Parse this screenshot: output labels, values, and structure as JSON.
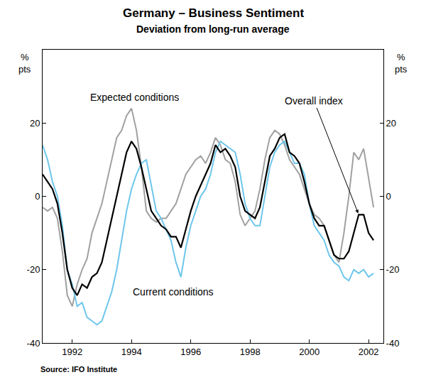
{
  "chart_data": {
    "type": "line",
    "title": "Germany – Business Sentiment",
    "subtitle": "Deviation from long-run average",
    "y_label": "% pts",
    "source": "Source: IFO Institute",
    "grid": false,
    "x": [
      1991.5,
      1991.667,
      1991.833,
      1992,
      1992.167,
      1992.333,
      1992.5,
      1992.667,
      1992.833,
      1993,
      1993.167,
      1993.333,
      1993.5,
      1993.667,
      1993.833,
      1994,
      1994.167,
      1994.333,
      1994.5,
      1994.667,
      1994.833,
      1995,
      1995.167,
      1995.333,
      1995.5,
      1995.667,
      1995.833,
      1996,
      1996.167,
      1996.333,
      1996.5,
      1996.667,
      1996.833,
      1997,
      1997.167,
      1997.333,
      1997.5,
      1997.667,
      1997.833,
      1998,
      1998.167,
      1998.333,
      1998.5,
      1998.667,
      1998.833,
      1999,
      1999.167,
      1999.333,
      1999.5,
      1999.667,
      1999.833,
      2000,
      2000.167,
      2000.333,
      2000.5,
      2000.667,
      2000.833,
      2001,
      2001.167,
      2001.333,
      2001.5,
      2001.667,
      2001.833,
      2002,
      2002.167,
      2002.333,
      2002.5,
      2002.667
    ],
    "xlim": [
      1991.5,
      2003
    ],
    "xticks": [
      {
        "value": 1992.5,
        "label": "1992"
      },
      {
        "value": 1994.5,
        "label": "1994"
      },
      {
        "value": 1996.5,
        "label": "1996"
      },
      {
        "value": 1998.5,
        "label": "1998"
      },
      {
        "value": 2000.5,
        "label": "2000"
      },
      {
        "value": 2002.5,
        "label": "2002"
      }
    ],
    "ylim": [
      -40,
      40
    ],
    "yticks": [
      -40,
      -20,
      0,
      20
    ],
    "y2lim": [
      -40,
      40
    ],
    "y2ticks": [
      -40,
      -20,
      0,
      20
    ],
    "series": [
      {
        "name": "Expected conditions",
        "color": "#a0a0a0",
        "values": [
          -3,
          -4,
          -3,
          -6,
          -15,
          -27,
          -30,
          -24,
          -20,
          -17,
          -10,
          -6,
          -2,
          4,
          10,
          16,
          18,
          22,
          24,
          18,
          8,
          -4,
          -6,
          -7,
          -6,
          -6,
          -4,
          -2,
          2,
          6,
          8,
          10,
          11,
          9,
          12,
          16,
          14,
          10,
          9,
          4,
          -5,
          -8,
          -6,
          -4,
          2,
          10,
          16,
          18,
          17,
          14,
          10,
          8,
          6,
          2,
          -2,
          -5,
          -6,
          -8,
          -12,
          -16,
          -18,
          -10,
          0,
          12,
          10,
          13,
          5,
          -3
        ]
      },
      {
        "name": "Current conditions",
        "color": "#6ec6ec",
        "values": [
          14,
          10,
          4,
          0,
          -8,
          -20,
          -24,
          -30,
          -29,
          -33,
          -34,
          -35,
          -34,
          -30,
          -26,
          -20,
          -12,
          -4,
          2,
          6,
          9,
          10,
          3,
          -4,
          -6,
          -9,
          -12,
          -18,
          -22,
          -14,
          -8,
          -4,
          0,
          2,
          6,
          12,
          15,
          14,
          13,
          12,
          6,
          -2,
          -6,
          -8,
          -8,
          0,
          8,
          12,
          14,
          15,
          12,
          9,
          9,
          6,
          -2,
          -8,
          -10,
          -12,
          -16,
          -18,
          -19,
          -22,
          -23,
          -20,
          -21,
          -20,
          -22,
          -21
        ]
      },
      {
        "name": "Overall index",
        "color": "#000000",
        "values": [
          6,
          4,
          2,
          -2,
          -10,
          -20,
          -25,
          -27,
          -24,
          -25,
          -22,
          -21,
          -18,
          -12,
          -6,
          0,
          6,
          12,
          15,
          13,
          8,
          2,
          -4,
          -6,
          -8,
          -9,
          -11,
          -11,
          -14,
          -9,
          -4,
          0,
          3,
          6,
          9,
          14,
          12,
          13,
          11,
          8,
          0,
          -4,
          -5,
          -6,
          -3,
          4,
          11,
          13,
          16,
          17,
          12,
          11,
          9,
          4,
          -2,
          -6,
          -8,
          -8,
          -12,
          -16,
          -17,
          -17,
          -15,
          -10,
          -5,
          -5,
          -10,
          -12
        ]
      }
    ]
  }
}
